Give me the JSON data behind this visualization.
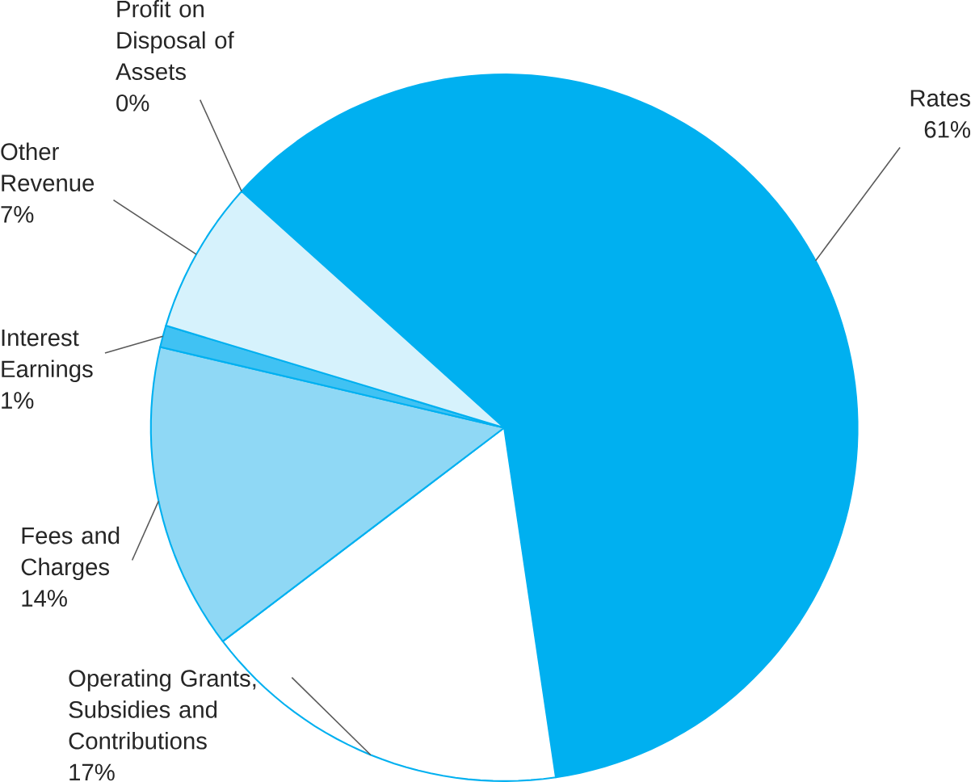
{
  "chart_data": {
    "type": "pie",
    "categories": [
      "Rates",
      "Operating Grants, Subsidies and Contributions",
      "Fees and Charges",
      "Interest Earnings",
      "Other Revenue",
      "Profit on Disposal of Assets"
    ],
    "values": [
      61,
      17,
      14,
      1,
      7,
      0
    ],
    "value_labels": [
      "61%",
      "17%",
      "14%",
      "1%",
      "7%",
      "0%"
    ],
    "colors": [
      "#00b0f0",
      "#ffffff",
      "#8fd8f5",
      "#40c2f3",
      "#d6f2fc",
      "#00b0f0"
    ]
  }
}
